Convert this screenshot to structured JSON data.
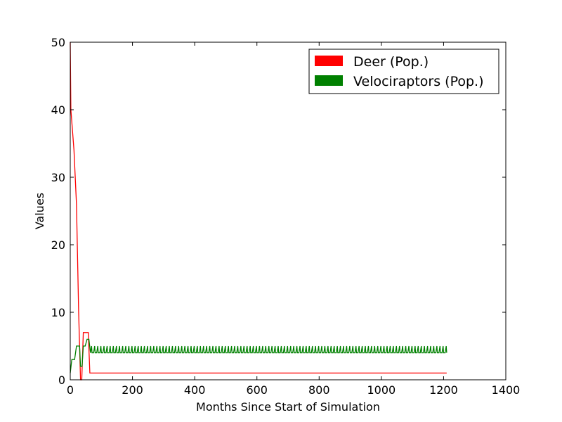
{
  "chart_data": {
    "type": "line",
    "title": "",
    "xlabel": "Months Since Start of Simulation",
    "ylabel": "Values",
    "xlim": [
      0,
      1400
    ],
    "ylim": [
      0,
      50
    ],
    "x_ticks": [
      0,
      200,
      400,
      600,
      800,
      1000,
      1200,
      1400
    ],
    "y_ticks": [
      0,
      10,
      20,
      30,
      40,
      50
    ],
    "x_tick_labels": [
      "0",
      "200",
      "400",
      "600",
      "800",
      "1000",
      "1200",
      "1400"
    ],
    "y_tick_labels": [
      "0",
      "10",
      "20",
      "30",
      "40",
      "50"
    ],
    "grid": false,
    "legend": {
      "position": "top-right"
    },
    "series": [
      {
        "name": "Deer (Pop.)",
        "color": "#ff0000",
        "points": [
          [
            0,
            50
          ],
          [
            2,
            40
          ],
          [
            12,
            34
          ],
          [
            20,
            26
          ],
          [
            27,
            10
          ],
          [
            33,
            0
          ],
          [
            37,
            0
          ],
          [
            42,
            7
          ],
          [
            50,
            7
          ],
          [
            58,
            7
          ],
          [
            63,
            1
          ],
          [
            1210,
            1
          ]
        ]
      },
      {
        "name": "Velociraptors (Pop.)",
        "color": "#008000",
        "baseline_points": [
          [
            0,
            1
          ],
          [
            5,
            3
          ],
          [
            14,
            3
          ],
          [
            20,
            5
          ],
          [
            30,
            5
          ],
          [
            33,
            2
          ],
          [
            38,
            2
          ],
          [
            42,
            5
          ],
          [
            48,
            5
          ],
          [
            54,
            6
          ],
          [
            60,
            6
          ],
          [
            65,
            4
          ]
        ],
        "oscillation": {
          "from_x": 65,
          "to_x": 1210,
          "low": 4,
          "high": 5,
          "period": 10
        }
      }
    ]
  }
}
